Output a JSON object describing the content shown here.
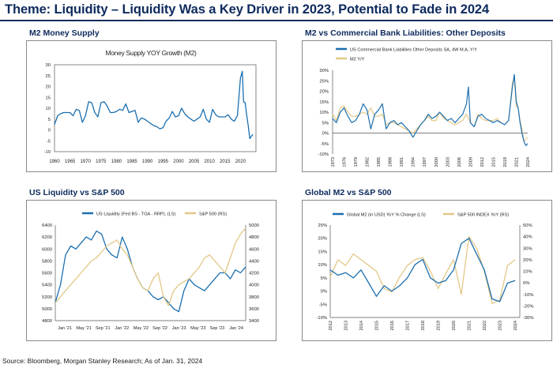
{
  "page": {
    "title": "Theme: Liquidity – Liquidity Was a Key Driver in 2023, Potential to Fade in 2024",
    "footer": "Source: Bloomberg, Morgan Stanley Research; As of Jan. 31, 2024"
  },
  "colors": {
    "blue": "#1b6fb0",
    "gold": "#e3c887",
    "navy": "#0d2a5c"
  },
  "chart_data": [
    {
      "panel_title": "M2 Money Supply",
      "type": "line",
      "title": "Money Supply YOY Growth (M2)",
      "x_ticks": [
        "1960",
        "1965",
        "1970",
        "1975",
        "1980",
        "1985",
        "1990",
        "1995",
        "2000",
        "2005",
        "2010",
        "2015",
        "2020"
      ],
      "y_ticks": [
        "30",
        "25",
        "20",
        "15",
        "10",
        "5",
        "0",
        "-5",
        "-10"
      ],
      "xlim": [
        1960,
        2025
      ],
      "ylim": [
        -10,
        30
      ],
      "series": [
        {
          "name": "M2 YoY Growth",
          "color": "#1b6fb0",
          "x": [
            1960,
            1961,
            1962,
            1963,
            1964,
            1965,
            1966,
            1967,
            1968,
            1969,
            1970,
            1971,
            1972,
            1973,
            1974,
            1975,
            1976,
            1977,
            1978,
            1979,
            1980,
            1981,
            1982,
            1983,
            1984,
            1985,
            1986,
            1987,
            1988,
            1989,
            1990,
            1991,
            1992,
            1993,
            1994,
            1995,
            1996,
            1997,
            1998,
            1999,
            2000,
            2001,
            2002,
            2003,
            2004,
            2005,
            2006,
            2007,
            2008,
            2009,
            2010,
            2011,
            2012,
            2013,
            2014,
            2015,
            2016,
            2017,
            2018,
            2019,
            2020,
            2020.3,
            2020.6,
            2021,
            2021.5,
            2022,
            2022.5,
            2023,
            2023.5,
            2024
          ],
          "y": [
            2.5,
            6.5,
            7.5,
            8,
            8,
            8,
            6.5,
            9.5,
            9,
            3.5,
            6.5,
            13,
            12.5,
            8,
            6,
            12.5,
            13,
            11,
            8,
            8,
            8.5,
            9.5,
            9,
            12,
            8,
            8.5,
            9,
            3.5,
            5.5,
            5,
            4,
            3,
            2,
            1.5,
            0.5,
            1,
            4,
            5.5,
            8.5,
            6,
            6.5,
            10,
            7.5,
            6,
            5,
            4,
            5,
            6,
            9.5,
            5,
            3.5,
            9.5,
            7,
            6,
            6,
            6,
            7,
            5,
            4,
            6.5,
            24,
            25.5,
            27,
            13,
            12.5,
            7,
            2,
            -4,
            -3,
            -2
          ]
        }
      ]
    },
    {
      "panel_title": "M2 vs Commercial Bank Liabilities: Other Deposits",
      "type": "line",
      "x_ticks": [
        "1973",
        "1976",
        "1979",
        "1982",
        "1985",
        "1988",
        "1991",
        "1994",
        "1997",
        "2000",
        "2003",
        "2006",
        "2009",
        "2012",
        "2015",
        "2018",
        "2021",
        "2024"
      ],
      "y_ticks": [
        "30%",
        "25%",
        "20%",
        "15%",
        "10%",
        "5%",
        "0%",
        "-5%",
        "-10%"
      ],
      "xlim": [
        1973,
        2024
      ],
      "ylim": [
        -10,
        30
      ],
      "series": [
        {
          "name": "US Commercial Bank Liabilities Other Deposits SA, 4W M.A, Y/Y",
          "color": "#1b6fb0",
          "x": [
            1973,
            1974,
            1975,
            1976,
            1977,
            1978,
            1979,
            1980,
            1981,
            1982,
            1983,
            1984,
            1985,
            1986,
            1987,
            1988,
            1989,
            1990,
            1991,
            1992,
            1993,
            1994,
            1995,
            1996,
            1997,
            1998,
            1999,
            2000,
            2001,
            2002,
            2003,
            2004,
            2005,
            2006,
            2007,
            2008,
            2008.5,
            2009,
            2010,
            2011,
            2012,
            2013,
            2014,
            2015,
            2016,
            2017,
            2018,
            2019,
            2020,
            2020.5,
            2021,
            2021.5,
            2022,
            2022.5,
            2023,
            2023.5,
            2024
          ],
          "y": [
            7,
            5,
            10,
            12,
            8,
            5,
            6,
            9,
            14,
            11,
            2,
            9,
            11,
            14,
            2,
            5,
            6,
            4,
            5,
            3,
            1,
            -2,
            1,
            4,
            6,
            9,
            7,
            8,
            10,
            8,
            6,
            7,
            5,
            7,
            9,
            14,
            22,
            5,
            3,
            8,
            9,
            7,
            6,
            5,
            6,
            5,
            4,
            6,
            22,
            28,
            15,
            12,
            5,
            0,
            -4,
            -6,
            -5
          ]
        },
        {
          "name": "M2 Y/Y",
          "color": "#e3c887",
          "x": [
            1973,
            1974,
            1975,
            1976,
            1977,
            1978,
            1979,
            1980,
            1981,
            1982,
            1983,
            1984,
            1985,
            1986,
            1987,
            1988,
            1989,
            1990,
            1991,
            1992,
            1993,
            1994,
            1995,
            1996,
            1997,
            1998,
            1999,
            2000,
            2001,
            2002,
            2003,
            2004,
            2005,
            2006,
            2007,
            2008,
            2009,
            2010,
            2011,
            2012,
            2013,
            2014,
            2015,
            2016,
            2017,
            2018,
            2019,
            2020,
            2020.5,
            2021,
            2021.5,
            2022,
            2022.5,
            2023,
            2023.5,
            2024
          ],
          "y": [
            9,
            6,
            12,
            13,
            10,
            8,
            8,
            9,
            10,
            9,
            12,
            8,
            8,
            9,
            4,
            5,
            5,
            4,
            3,
            2,
            1,
            0,
            2,
            4,
            6,
            8,
            6,
            6,
            10,
            7,
            6,
            5,
            4,
            5,
            6,
            9,
            5,
            3,
            9,
            7,
            6,
            6,
            6,
            7,
            5,
            4,
            6,
            24,
            26,
            13,
            12,
            6,
            2,
            -4,
            -3,
            -2
          ]
        }
      ]
    },
    {
      "panel_title": "US Liquidity vs S&P 500",
      "type": "line",
      "x_ticks": [
        "Jan '21",
        "May '21",
        "Sep '21",
        "Jan '22",
        "May '22",
        "Sep '22",
        "Jan '23",
        "May '23",
        "Sep '23",
        "Jan '24"
      ],
      "y_ticks_left": [
        "6400",
        "6200",
        "6000",
        "5800",
        "5600",
        "5400",
        "5200",
        "5000",
        "4800"
      ],
      "y_ticks_right": [
        "5000",
        "4800",
        "4600",
        "4400",
        "4200",
        "4000",
        "3800",
        "3600",
        "3400"
      ],
      "xlim": [
        0,
        37
      ],
      "ylim_left": [
        4800,
        6400
      ],
      "ylim_right": [
        3400,
        5000
      ],
      "series": [
        {
          "name": "US Liquidity (Fed BS - TGA - RRP), (LS)",
          "axis": "left",
          "color": "#1b6fb0",
          "x": [
            0,
            1,
            2,
            3,
            4,
            5,
            6,
            7,
            8,
            9,
            10,
            11,
            12,
            13,
            14,
            15,
            16,
            17,
            18,
            19,
            20,
            21,
            22,
            23,
            24,
            25,
            26,
            27,
            28,
            29,
            30,
            31,
            32,
            33,
            34,
            35,
            36,
            37
          ],
          "y": [
            5100,
            5400,
            5900,
            6050,
            6000,
            6100,
            6200,
            6150,
            6300,
            6250,
            6000,
            5900,
            5850,
            6200,
            6000,
            5700,
            5500,
            5350,
            5300,
            5200,
            5150,
            5200,
            5100,
            5000,
            4950,
            5300,
            5500,
            5400,
            5350,
            5300,
            5400,
            5500,
            5600,
            5600,
            5500,
            5650,
            5600,
            5700
          ]
        },
        {
          "name": "S&P 500 (RS)",
          "axis": "right",
          "color": "#e3c887",
          "x": [
            0,
            1,
            2,
            3,
            4,
            5,
            6,
            7,
            8,
            9,
            10,
            11,
            12,
            13,
            14,
            15,
            16,
            17,
            18,
            19,
            20,
            21,
            22,
            23,
            24,
            25,
            26,
            27,
            28,
            29,
            30,
            31,
            32,
            33,
            34,
            35,
            36,
            37
          ],
          "y": [
            3700,
            3800,
            3900,
            4000,
            4100,
            4200,
            4300,
            4400,
            4450,
            4550,
            4650,
            4700,
            4750,
            4600,
            4500,
            4300,
            4100,
            3950,
            3900,
            4100,
            4200,
            3800,
            3650,
            3900,
            4000,
            4050,
            4100,
            4200,
            4300,
            4450,
            4500,
            4400,
            4300,
            4200,
            4450,
            4700,
            4850,
            4950
          ]
        }
      ]
    },
    {
      "panel_title": "Global M2 vs S&P 500",
      "type": "line",
      "x_ticks": [
        "2012",
        "2013",
        "2014",
        "2015",
        "2016",
        "2017",
        "2018",
        "2019",
        "2020",
        "2021",
        "2022",
        "2023",
        "2024"
      ],
      "y_ticks_left": [
        "25%",
        "20%",
        "15%",
        "10%",
        "5%",
        "0%",
        "-5%",
        "-10%"
      ],
      "y_ticks_right": [
        "50%",
        "40%",
        "30%",
        "20%",
        "10%",
        "0%",
        "-10%",
        "-20%",
        "-30%"
      ],
      "xlim": [
        2012,
        2024.3
      ],
      "ylim_left": [
        -10,
        25
      ],
      "ylim_right": [
        -30,
        50
      ],
      "series": [
        {
          "name": "Global M2 (in USD) YoY % Change (LS)",
          "axis": "left",
          "color": "#1b6fb0",
          "x": [
            2012,
            2012.5,
            2013,
            2013.5,
            2014,
            2014.5,
            2015,
            2015.5,
            2016,
            2016.5,
            2017,
            2017.5,
            2018,
            2018.5,
            2019,
            2019.5,
            2020,
            2020.5,
            2021,
            2021.5,
            2022,
            2022.5,
            2023,
            2023.5,
            2024
          ],
          "y": [
            8,
            6,
            7,
            5,
            8,
            3,
            -2,
            2,
            0,
            2,
            5,
            10,
            12,
            5,
            3,
            4,
            8,
            18,
            20,
            14,
            8,
            -3,
            -4,
            3,
            4
          ]
        },
        {
          "name": "S&P 500 INDEX YoY (RS)",
          "axis": "right",
          "color": "#e3c887",
          "x": [
            2012,
            2012.5,
            2013,
            2013.5,
            2014,
            2014.5,
            2015,
            2015.5,
            2016,
            2016.5,
            2017,
            2017.5,
            2018,
            2018.5,
            2019,
            2019.5,
            2020,
            2020.5,
            2021,
            2021.5,
            2022,
            2022.5,
            2023,
            2023.5,
            2024
          ],
          "y": [
            5,
            20,
            15,
            25,
            20,
            15,
            10,
            -5,
            -8,
            5,
            15,
            20,
            22,
            10,
            -5,
            8,
            20,
            -10,
            40,
            30,
            10,
            -18,
            -15,
            15,
            20
          ]
        }
      ]
    }
  ]
}
